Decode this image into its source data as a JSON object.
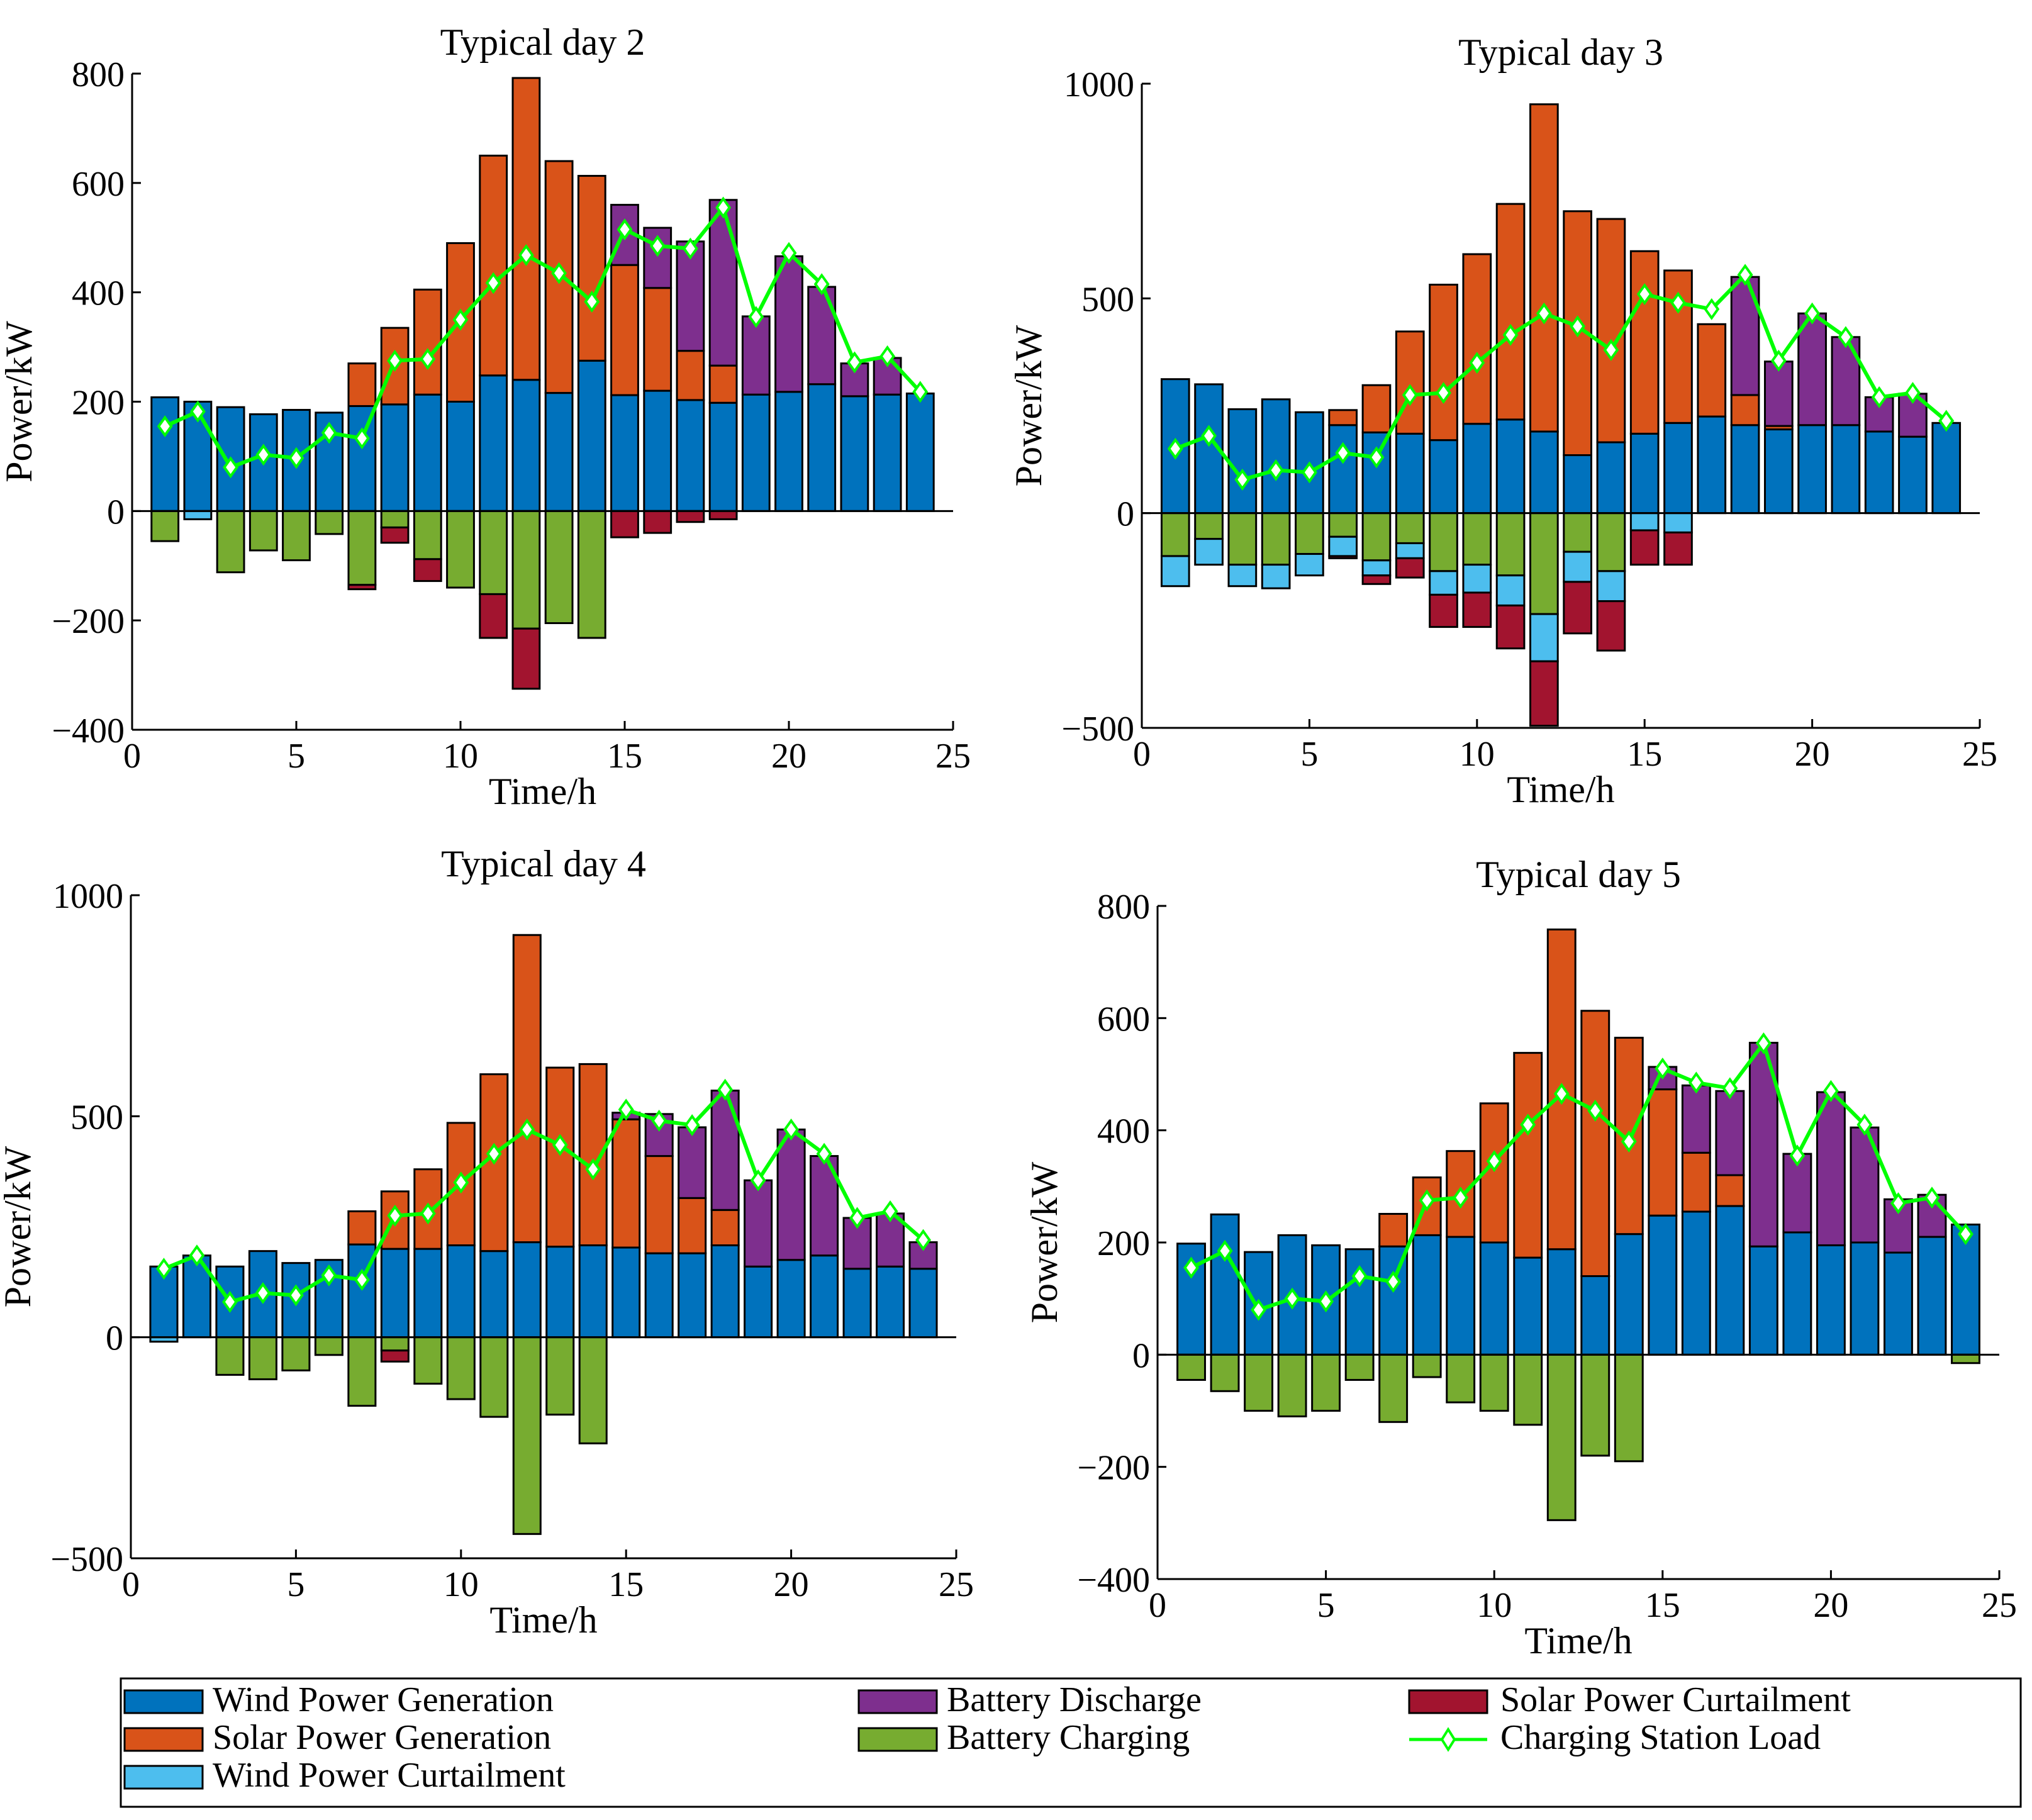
{
  "colors": {
    "wind": "#0072bd",
    "solar": "#d95319",
    "wind_curt": "#4dbeee",
    "discharge": "#7e2f8e",
    "charging": "#77ac30",
    "solar_curt": "#a2142f",
    "load": "#00ff00"
  },
  "legend": {
    "entries": [
      {
        "key": "wind",
        "label": "Wind Power Generation"
      },
      {
        "key": "solar",
        "label": "Solar Power Generation"
      },
      {
        "key": "wind_curt",
        "label": "Wind Power Curtailment"
      },
      {
        "key": "discharge",
        "label": "Battery Discharge"
      },
      {
        "key": "charging",
        "label": "Battery Charging"
      },
      {
        "key": "solar_curt",
        "label": "Solar Power Curtailment"
      },
      {
        "key": "load",
        "label": "Charging Station Load"
      }
    ]
  },
  "chart_data": [
    {
      "type": "bar",
      "title": "Typical day 2",
      "xlabel": "Time/h",
      "ylabel": "Power/kW",
      "xlim": [
        0,
        25
      ],
      "ylim": [
        -400,
        800
      ],
      "xticks": [
        0,
        5,
        10,
        15,
        20,
        25
      ],
      "yticks": [
        -400,
        -200,
        0,
        200,
        400,
        600,
        800
      ],
      "ytick_labels": [
        "−400",
        "−200",
        "0",
        "200",
        "400",
        "600",
        "800"
      ],
      "x": [
        1,
        2,
        3,
        4,
        5,
        6,
        7,
        8,
        9,
        10,
        11,
        12,
        13,
        14,
        15,
        16,
        17,
        18,
        19,
        20,
        21,
        22,
        23,
        24
      ],
      "wind": [
        208,
        200,
        190,
        177,
        185,
        180,
        192,
        195,
        213,
        200,
        248,
        240,
        216,
        275,
        212,
        220,
        203,
        198,
        213,
        218,
        232,
        210,
        213,
        215
      ],
      "solar": [
        0,
        0,
        0,
        0,
        0,
        0,
        78,
        140,
        192,
        290,
        402,
        552,
        424,
        338,
        238,
        188,
        90,
        68,
        0,
        0,
        0,
        0,
        0,
        0
      ],
      "discharge": [
        0,
        0,
        0,
        0,
        0,
        0,
        0,
        0,
        0,
        0,
        0,
        0,
        0,
        0,
        110,
        110,
        200,
        303,
        143,
        248,
        178,
        60,
        67,
        0
      ],
      "charging": [
        -55,
        0,
        -112,
        -72,
        -90,
        -42,
        -135,
        -30,
        -88,
        -140,
        -152,
        -215,
        -205,
        -232,
        0,
        0,
        0,
        0,
        0,
        0,
        0,
        0,
        0,
        0
      ],
      "wind_curt": [
        0,
        -15,
        0,
        0,
        0,
        0,
        0,
        0,
        0,
        0,
        0,
        0,
        0,
        0,
        0,
        0,
        0,
        0,
        0,
        0,
        0,
        0,
        0,
        0
      ],
      "solar_curt": [
        0,
        0,
        0,
        0,
        0,
        0,
        -8,
        -28,
        -40,
        0,
        -80,
        -110,
        0,
        0,
        -48,
        -40,
        -20,
        -15,
        0,
        0,
        0,
        0,
        0,
        0
      ],
      "load": [
        155,
        182,
        80,
        103,
        97,
        143,
        133,
        275,
        278,
        350,
        417,
        468,
        435,
        383,
        515,
        485,
        480,
        555,
        355,
        472,
        415,
        272,
        283,
        218
      ]
    },
    {
      "type": "bar",
      "title": "Typical day 3",
      "xlabel": "Time/h",
      "ylabel": "Power/kW",
      "xlim": [
        0,
        25
      ],
      "ylim": [
        -500,
        1000
      ],
      "xticks": [
        0,
        5,
        10,
        15,
        20,
        25
      ],
      "yticks": [
        -500,
        0,
        500,
        1000
      ],
      "ytick_labels": [
        "−500",
        "0",
        "500",
        "1000"
      ],
      "x": [
        1,
        2,
        3,
        4,
        5,
        6,
        7,
        8,
        9,
        10,
        11,
        12,
        13,
        14,
        15,
        16,
        17,
        18,
        19,
        20,
        21,
        22,
        23,
        24
      ],
      "wind": [
        312,
        300,
        242,
        265,
        235,
        205,
        188,
        185,
        170,
        208,
        218,
        190,
        135,
        165,
        185,
        210,
        225,
        205,
        195,
        205,
        205,
        190,
        178,
        210
      ],
      "solar": [
        0,
        0,
        0,
        0,
        0,
        35,
        110,
        238,
        362,
        395,
        502,
        762,
        568,
        520,
        425,
        355,
        215,
        70,
        8,
        0,
        0,
        0,
        0,
        0
      ],
      "discharge": [
        0,
        0,
        0,
        0,
        0,
        0,
        0,
        0,
        0,
        0,
        0,
        0,
        0,
        0,
        0,
        0,
        0,
        275,
        150,
        260,
        205,
        80,
        100,
        0
      ],
      "charging": [
        -100,
        -60,
        -120,
        -120,
        -95,
        -55,
        -110,
        -70,
        -135,
        -120,
        -145,
        -235,
        -90,
        -135,
        0,
        0,
        0,
        0,
        0,
        0,
        0,
        0,
        0,
        0
      ],
      "wind_curt": [
        -70,
        -60,
        -50,
        -55,
        -50,
        -45,
        -35,
        -35,
        -55,
        -65,
        -70,
        -110,
        -70,
        -70,
        -40,
        -45,
        0,
        0,
        0,
        0,
        0,
        0,
        0,
        0
      ],
      "solar_curt": [
        0,
        0,
        0,
        0,
        0,
        -5,
        -20,
        -45,
        -75,
        -80,
        -100,
        -150,
        -120,
        -115,
        -80,
        -75,
        0,
        0,
        0,
        0,
        0,
        0,
        0,
        0
      ],
      "load": [
        150,
        180,
        78,
        100,
        95,
        140,
        130,
        275,
        280,
        350,
        415,
        465,
        435,
        380,
        510,
        490,
        475,
        555,
        355,
        465,
        410,
        270,
        280,
        215
      ]
    },
    {
      "type": "bar",
      "title": "Typical day 4",
      "xlabel": "Time/h",
      "ylabel": "Power/kW",
      "xlim": [
        0,
        25
      ],
      "ylim": [
        -500,
        1000
      ],
      "xticks": [
        0,
        5,
        10,
        15,
        20,
        25
      ],
      "yticks": [
        -500,
        0,
        500,
        1000
      ],
      "ytick_labels": [
        "−500",
        "0",
        "500",
        "1000"
      ],
      "x": [
        1,
        2,
        3,
        4,
        5,
        6,
        7,
        8,
        9,
        10,
        11,
        12,
        13,
        14,
        15,
        16,
        17,
        18,
        19,
        20,
        21,
        22,
        23,
        24
      ],
      "wind": [
        160,
        185,
        160,
        195,
        168,
        175,
        210,
        200,
        200,
        208,
        195,
        215,
        205,
        208,
        203,
        190,
        190,
        208,
        160,
        175,
        185,
        155,
        160,
        155
      ],
      "solar": [
        0,
        0,
        0,
        0,
        0,
        0,
        75,
        130,
        180,
        277,
        400,
        695,
        405,
        410,
        290,
        220,
        125,
        80,
        0,
        0,
        0,
        0,
        0,
        0
      ],
      "discharge": [
        0,
        0,
        0,
        0,
        0,
        0,
        0,
        0,
        0,
        0,
        0,
        0,
        0,
        0,
        15,
        95,
        160,
        270,
        195,
        295,
        225,
        115,
        120,
        60
      ],
      "charging": [
        0,
        0,
        -85,
        -95,
        -75,
        -40,
        -155,
        -30,
        -105,
        -140,
        -180,
        -445,
        -175,
        -240,
        0,
        0,
        0,
        0,
        0,
        0,
        0,
        0,
        0,
        0
      ],
      "wind_curt": [
        -10,
        0,
        0,
        0,
        0,
        0,
        0,
        0,
        0,
        0,
        0,
        0,
        0,
        0,
        0,
        0,
        0,
        0,
        0,
        0,
        0,
        0,
        0,
        0
      ],
      "solar_curt": [
        0,
        0,
        0,
        0,
        0,
        0,
        0,
        -25,
        0,
        0,
        0,
        0,
        0,
        0,
        0,
        0,
        0,
        0,
        0,
        0,
        0,
        0,
        0,
        0
      ],
      "load": [
        155,
        185,
        80,
        100,
        95,
        140,
        130,
        275,
        280,
        350,
        415,
        470,
        435,
        380,
        515,
        490,
        480,
        560,
        355,
        470,
        415,
        270,
        285,
        220
      ]
    },
    {
      "type": "bar",
      "title": "Typical day 5",
      "xlabel": "Time/h",
      "ylabel": "Power/kW",
      "xlim": [
        0,
        25
      ],
      "ylim": [
        -400,
        800
      ],
      "xticks": [
        0,
        5,
        10,
        15,
        20,
        25
      ],
      "yticks": [
        -400,
        -200,
        0,
        200,
        400,
        600,
        800
      ],
      "ytick_labels": [
        "−400",
        "−200",
        "0",
        "200",
        "400",
        "600",
        "800"
      ],
      "x": [
        1,
        2,
        3,
        4,
        5,
        6,
        7,
        8,
        9,
        10,
        11,
        12,
        13,
        14,
        15,
        16,
        17,
        18,
        19,
        20,
        21,
        22,
        23,
        24
      ],
      "wind": [
        198,
        250,
        183,
        213,
        195,
        188,
        193,
        213,
        210,
        200,
        173,
        188,
        140,
        215,
        248,
        255,
        265,
        193,
        218,
        195,
        200,
        182,
        210,
        232
      ],
      "solar": [
        0,
        0,
        0,
        0,
        0,
        0,
        58,
        103,
        153,
        248,
        365,
        570,
        473,
        350,
        225,
        105,
        55,
        0,
        0,
        0,
        0,
        0,
        0,
        0
      ],
      "discharge": [
        0,
        0,
        0,
        0,
        0,
        0,
        0,
        0,
        0,
        0,
        0,
        0,
        0,
        0,
        40,
        120,
        150,
        363,
        140,
        273,
        205,
        95,
        75,
        0
      ],
      "charging": [
        -45,
        -65,
        -100,
        -110,
        -100,
        -45,
        -120,
        -40,
        -85,
        -100,
        -125,
        -295,
        -180,
        -190,
        0,
        0,
        0,
        0,
        0,
        0,
        0,
        0,
        0,
        -15
      ],
      "wind_curt": [
        0,
        0,
        0,
        0,
        0,
        0,
        0,
        0,
        0,
        0,
        0,
        0,
        0,
        0,
        0,
        0,
        0,
        0,
        0,
        0,
        0,
        0,
        0,
        0
      ],
      "solar_curt": [
        0,
        0,
        0,
        0,
        0,
        0,
        0,
        0,
        0,
        0,
        0,
        0,
        0,
        0,
        0,
        0,
        0,
        0,
        0,
        0,
        0,
        0,
        0,
        0
      ],
      "load": [
        155,
        185,
        80,
        100,
        95,
        140,
        130,
        275,
        280,
        345,
        410,
        465,
        435,
        380,
        510,
        485,
        475,
        555,
        355,
        470,
        410,
        270,
        280,
        215
      ]
    }
  ]
}
